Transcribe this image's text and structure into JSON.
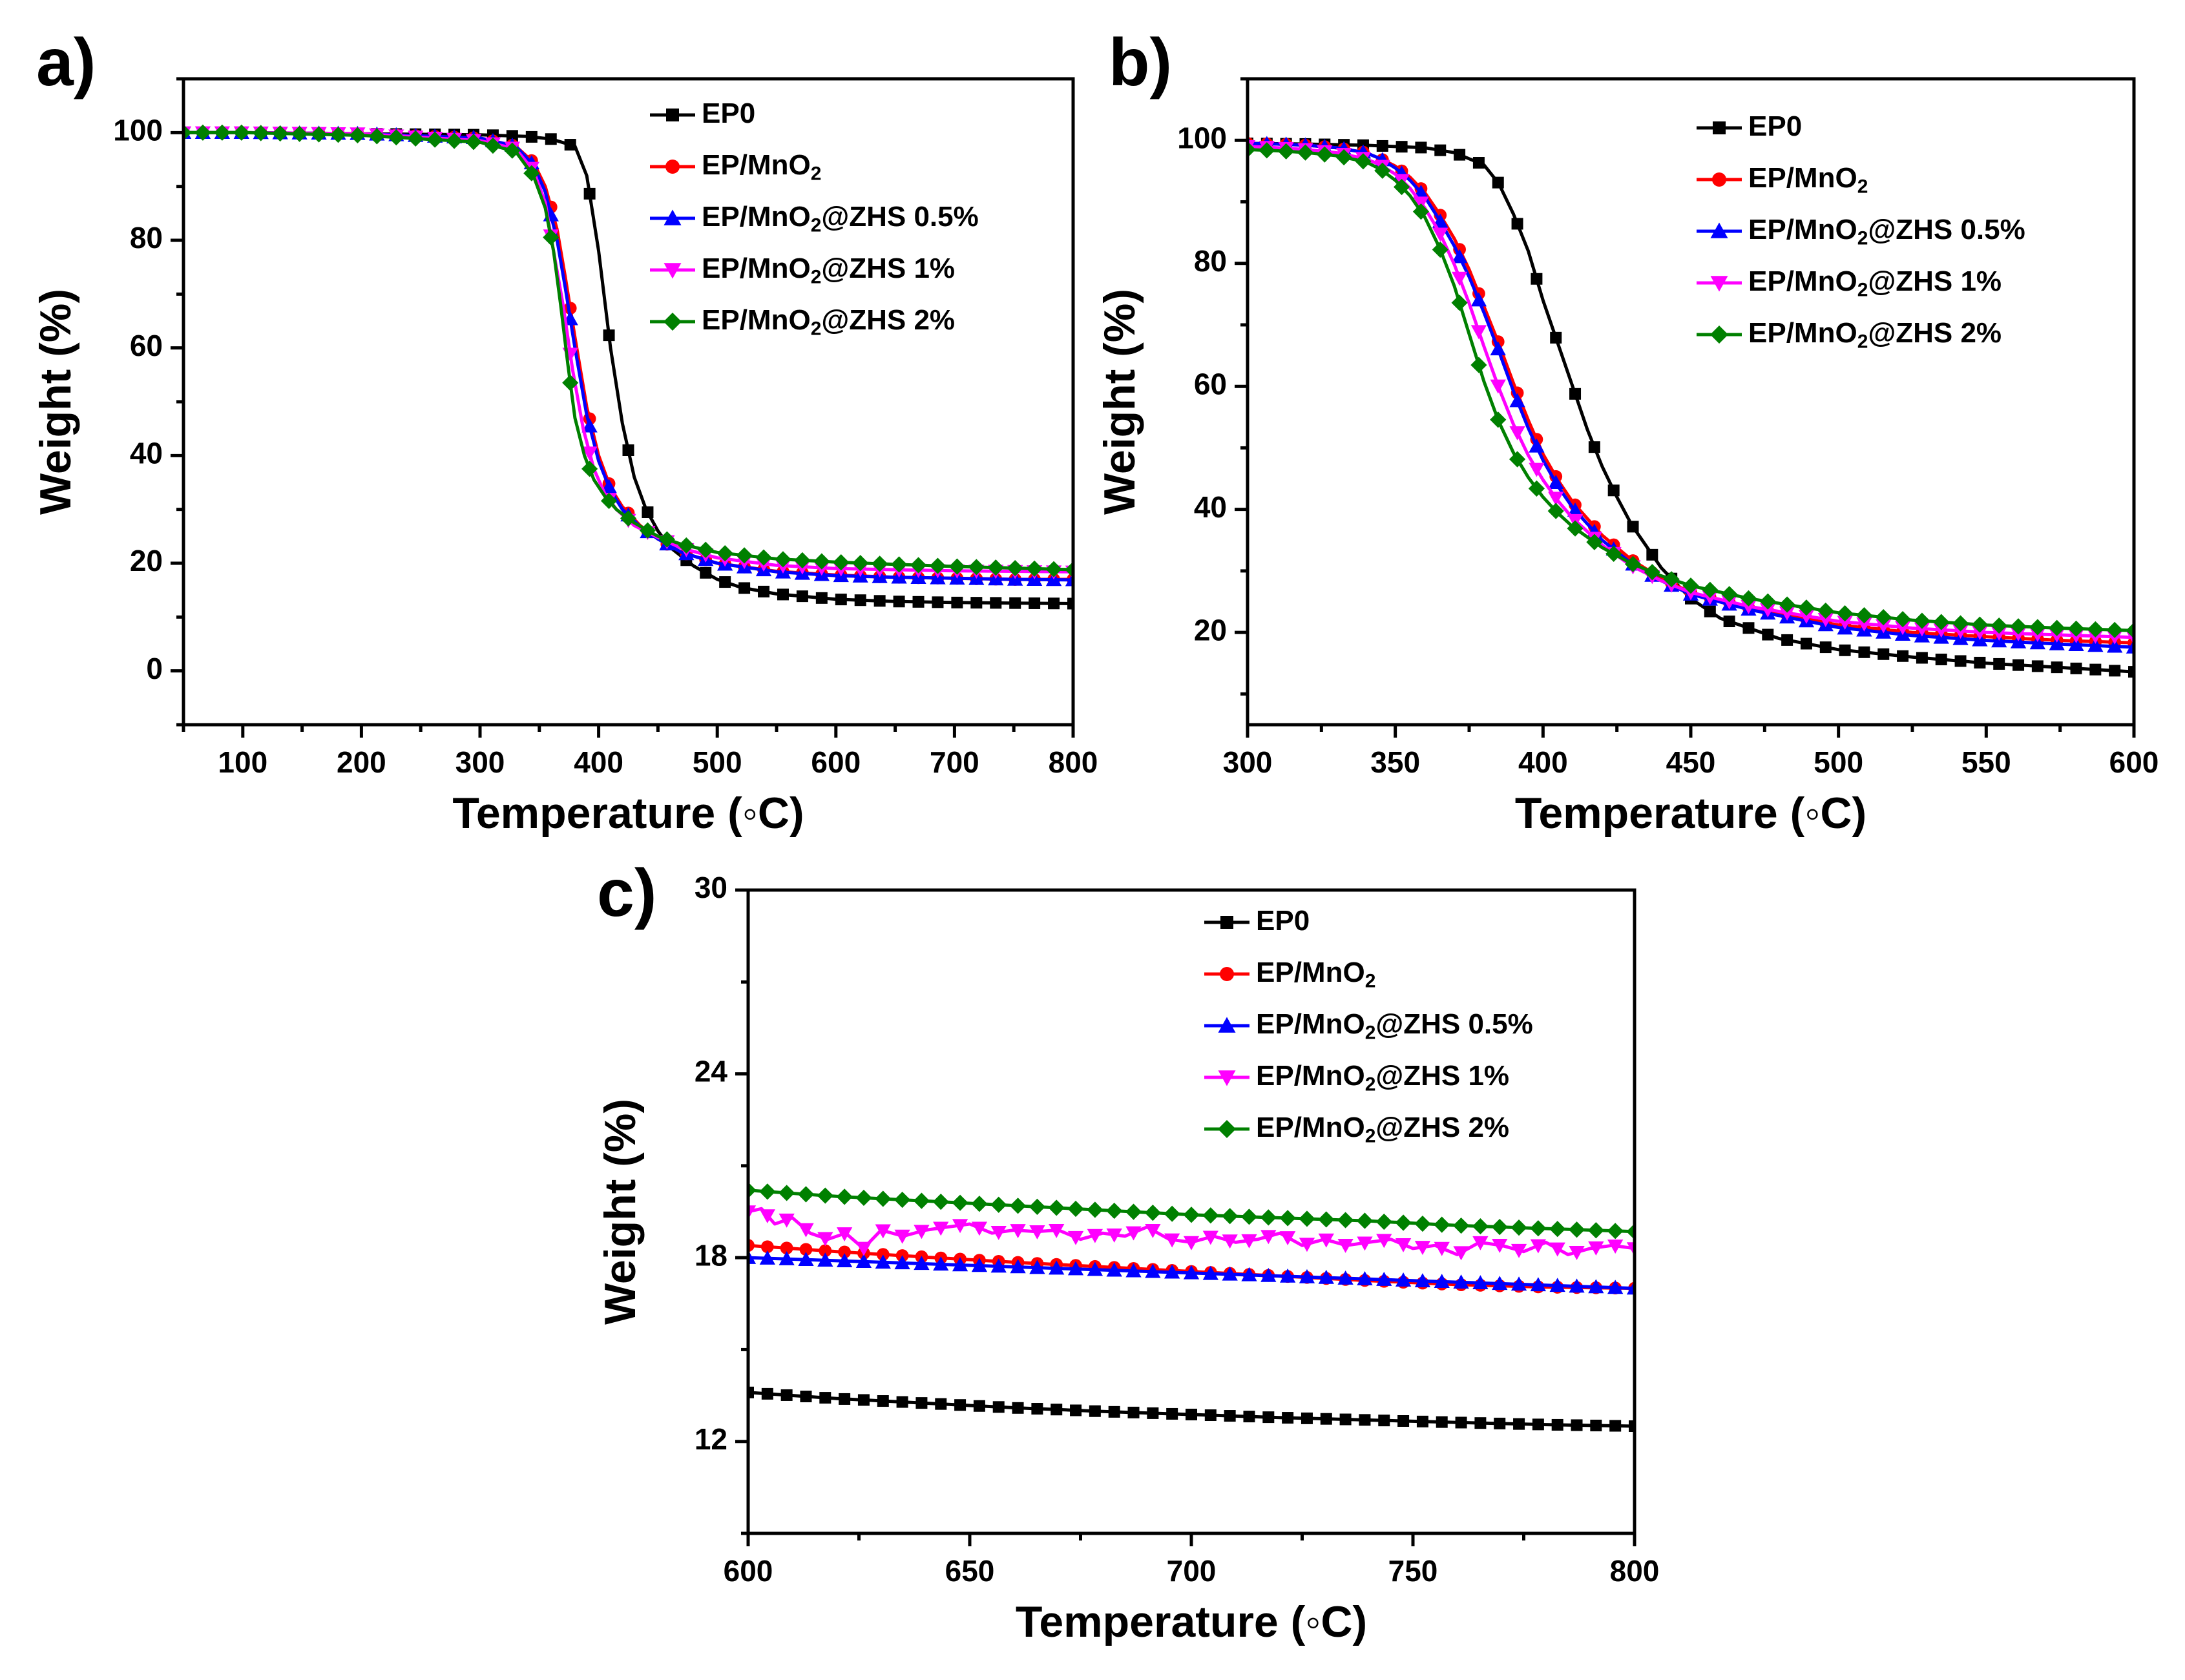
{
  "panels": [
    {
      "tag": "a)",
      "xlabel": "Temperature (◦C)",
      "ylabel": "Weight (%)"
    },
    {
      "tag": "b)",
      "xlabel": "Temperature (◦C)",
      "ylabel": "Weight (%)"
    },
    {
      "tag": "c)",
      "xlabel": "Temperature (◦C)",
      "ylabel": "Weight (%)"
    }
  ],
  "chart_data": [
    {
      "type": "line",
      "panel": "a)",
      "xlabel": "Temperature (◦C)",
      "ylabel": "Weight (%)",
      "xlim": [
        50,
        800
      ],
      "ylim": [
        -10,
        110
      ],
      "xticks": [
        100,
        200,
        300,
        400,
        500,
        600,
        700,
        800
      ],
      "yticks": [
        0,
        20,
        40,
        60,
        80,
        100
      ],
      "grid": false,
      "legend_position": "top-right",
      "series": [
        {
          "name": "EP0",
          "color": "#000000",
          "marker": "square",
          "x": [
            50,
            100,
            200,
            300,
            340,
            360,
            380,
            390,
            400,
            410,
            420,
            430,
            440,
            450,
            460,
            480,
            500,
            520,
            550,
            600,
            650,
            700,
            750,
            800
          ],
          "y": [
            100,
            100,
            99.8,
            99.6,
            99.3,
            98.8,
            97.5,
            92,
            78,
            60,
            46,
            36,
            30,
            26,
            23,
            19.5,
            17,
            15.5,
            14.3,
            13.3,
            12.9,
            12.7,
            12.6,
            12.5
          ]
        },
        {
          "name": "EP/MnO2",
          "color": "#ff0000",
          "marker": "circle",
          "x": [
            50,
            100,
            200,
            300,
            330,
            345,
            355,
            365,
            372,
            380,
            390,
            400,
            410,
            420,
            435,
            450,
            470,
            500,
            550,
            600,
            650,
            700,
            750,
            800
          ],
          "y": [
            100,
            100,
            99.8,
            99,
            97.5,
            94.5,
            90,
            82,
            73,
            62,
            49,
            40,
            34,
            30.5,
            27,
            24.5,
            22,
            20,
            18.5,
            17.8,
            17.4,
            17.2,
            17,
            17
          ]
        },
        {
          "name": "EP/MnO2@ZHS 0.5%",
          "color": "#0000ff",
          "marker": "triangle-up",
          "x": [
            50,
            100,
            200,
            300,
            330,
            345,
            355,
            365,
            372,
            380,
            390,
            400,
            410,
            420,
            435,
            450,
            470,
            500,
            550,
            600,
            650,
            700,
            750,
            800
          ],
          "y": [
            100,
            100,
            99.8,
            99,
            97.5,
            94,
            89,
            80,
            71,
            60,
            47.5,
            39,
            33.5,
            30,
            26.8,
            24.5,
            22,
            20,
            18.4,
            17.7,
            17.4,
            17.2,
            17,
            16.9
          ]
        },
        {
          "name": "EP/MnO2@ZHS 1%",
          "color": "#ff00ff",
          "marker": "triangle-down",
          "x": [
            50,
            100,
            200,
            300,
            330,
            345,
            355,
            362,
            370,
            378,
            387,
            396,
            405,
            415,
            430,
            450,
            470,
            500,
            550,
            600,
            650,
            700,
            750,
            800
          ],
          "y": [
            100,
            100,
            99.8,
            98.5,
            97,
            93,
            87,
            78,
            68,
            56,
            45,
            37.5,
            33,
            30,
            27,
            24.8,
            22.8,
            21,
            19.6,
            19,
            18.8,
            18.6,
            18.5,
            18.4
          ]
        },
        {
          "name": "EP/MnO2@ZHS 2%",
          "color": "#008000",
          "marker": "diamond",
          "x": [
            50,
            100,
            200,
            300,
            330,
            345,
            355,
            362,
            368,
            374,
            380,
            388,
            396,
            405,
            415,
            430,
            450,
            470,
            500,
            550,
            600,
            650,
            700,
            750,
            800
          ],
          "y": [
            100,
            100,
            99.5,
            98.2,
            96.5,
            92,
            86,
            78,
            68,
            57,
            47,
            40,
            35.5,
            32.5,
            30,
            27.5,
            25,
            23.5,
            22,
            20.8,
            20.2,
            19.8,
            19.4,
            19.1,
            18.8
          ]
        }
      ]
    },
    {
      "type": "line",
      "panel": "b)",
      "xlabel": "Temperature (◦C)",
      "ylabel": "Weight (%)",
      "xlim": [
        300,
        600
      ],
      "ylim": [
        5,
        110
      ],
      "xticks": [
        300,
        350,
        400,
        450,
        500,
        550,
        600
      ],
      "yticks": [
        20,
        40,
        60,
        80,
        100
      ],
      "grid": false,
      "legend_position": "top-right",
      "series": [
        {
          "name": "EP0",
          "color": "#000000",
          "marker": "square",
          "x": [
            300,
            320,
            340,
            360,
            370,
            380,
            385,
            390,
            395,
            400,
            405,
            410,
            415,
            420,
            425,
            430,
            440,
            450,
            460,
            480,
            500,
            525,
            550,
            575,
            600
          ],
          "y": [
            99.5,
            99.4,
            99.2,
            98.8,
            98,
            96,
            93,
            88,
            82,
            74,
            67,
            60,
            53,
            47,
            42,
            37.5,
            30.5,
            25.5,
            22.3,
            19,
            17.2,
            16,
            15,
            14.3,
            13.6
          ]
        },
        {
          "name": "EP/MnO2",
          "color": "#ff0000",
          "marker": "circle",
          "x": [
            300,
            310,
            320,
            330,
            340,
            345,
            350,
            355,
            360,
            365,
            370,
            375,
            380,
            385,
            390,
            395,
            400,
            405,
            410,
            420,
            430,
            440,
            450,
            470,
            500,
            525,
            550,
            575,
            600
          ],
          "y": [
            99.5,
            99.4,
            99.2,
            98.8,
            98,
            97,
            95.8,
            94,
            91.5,
            88,
            84,
            79,
            73,
            67,
            60.5,
            54.5,
            49,
            44.8,
            41.2,
            35.8,
            31.8,
            28.8,
            26.5,
            24,
            21.2,
            20,
            19.3,
            18.7,
            18.3
          ]
        },
        {
          "name": "EP/MnO2@ZHS 0.5%",
          "color": "#0000ff",
          "marker": "triangle-up",
          "x": [
            300,
            310,
            320,
            330,
            340,
            345,
            350,
            355,
            360,
            365,
            370,
            375,
            380,
            385,
            390,
            395,
            400,
            405,
            410,
            420,
            430,
            440,
            450,
            470,
            500,
            525,
            550,
            575,
            600
          ],
          "y": [
            99.5,
            99.4,
            99.2,
            98.8,
            98,
            97,
            95.5,
            93.5,
            90.8,
            87,
            82.8,
            77.8,
            72,
            65.8,
            59.2,
            53.2,
            48,
            43.8,
            40.3,
            35,
            31.2,
            28.4,
            26.2,
            23.7,
            20.8,
            19.5,
            18.7,
            18.1,
            17.6
          ]
        },
        {
          "name": "EP/MnO2@ZHS 1%",
          "color": "#ff00ff",
          "marker": "triangle-down",
          "x": [
            300,
            310,
            320,
            330,
            340,
            345,
            350,
            355,
            360,
            365,
            370,
            375,
            380,
            385,
            390,
            395,
            400,
            405,
            410,
            420,
            430,
            440,
            450,
            470,
            500,
            525,
            550,
            575,
            600
          ],
          "y": [
            99,
            98.8,
            98.5,
            98,
            97,
            96,
            94.5,
            92.2,
            89,
            85,
            79.8,
            73.5,
            66.5,
            59.8,
            53.8,
            48.8,
            44.8,
            41.4,
            38.6,
            34.2,
            30.8,
            28.4,
            26.5,
            24.2,
            21.8,
            20.7,
            20,
            19.6,
            19.2
          ]
        },
        {
          "name": "EP/MnO2@ZHS 2%",
          "color": "#008000",
          "marker": "diamond",
          "x": [
            300,
            310,
            320,
            330,
            340,
            345,
            350,
            355,
            360,
            365,
            370,
            375,
            380,
            385,
            390,
            395,
            400,
            405,
            410,
            420,
            430,
            440,
            450,
            470,
            500,
            525,
            550,
            575,
            600
          ],
          "y": [
            98.5,
            98.3,
            98,
            97.5,
            96.5,
            95.3,
            93.5,
            91,
            87.5,
            82.5,
            76.3,
            68.5,
            60.8,
            54.3,
            49.2,
            45.2,
            42,
            39.4,
            37.2,
            33.8,
            31.2,
            29.2,
            27.6,
            25.5,
            23.2,
            22,
            21.2,
            20.7,
            20.3
          ]
        }
      ]
    },
    {
      "type": "line",
      "panel": "c)",
      "xlabel": "Temperature (◦C)",
      "ylabel": "Weight (%)",
      "xlim": [
        600,
        800
      ],
      "ylim": [
        9,
        30
      ],
      "xticks": [
        600,
        650,
        700,
        750,
        800
      ],
      "yticks": [
        12,
        18,
        24,
        30
      ],
      "grid": false,
      "legend_position": "top-right",
      "series": [
        {
          "name": "EP0",
          "color": "#000000",
          "marker": "square",
          "x": [
            600,
            620,
            640,
            660,
            680,
            700,
            720,
            740,
            760,
            780,
            800
          ],
          "y": [
            13.6,
            13.4,
            13.25,
            13.1,
            12.98,
            12.88,
            12.78,
            12.7,
            12.62,
            12.55,
            12.5
          ]
        },
        {
          "name": "EP/MnO2",
          "color": "#ff0000",
          "marker": "circle",
          "x": [
            600,
            620,
            640,
            660,
            680,
            700,
            720,
            740,
            760,
            780,
            800
          ],
          "y": [
            18.4,
            18.2,
            18.02,
            17.85,
            17.7,
            17.55,
            17.4,
            17.25,
            17.12,
            17.04,
            17.0
          ]
        },
        {
          "name": "EP/MnO2@ZHS 0.5%",
          "color": "#0000ff",
          "marker": "triangle-up",
          "x": [
            600,
            620,
            640,
            660,
            680,
            700,
            720,
            740,
            760,
            780,
            800
          ],
          "y": [
            18.0,
            17.9,
            17.8,
            17.7,
            17.6,
            17.5,
            17.4,
            17.3,
            17.2,
            17.1,
            17.0
          ]
        },
        {
          "name": "EP/MnO2@ZHS 1%",
          "color": "#ff00ff",
          "marker": "triangle-down",
          "x": [
            600,
            603,
            606,
            610,
            614,
            618,
            622,
            626,
            630,
            635,
            640,
            645,
            650,
            655,
            660,
            665,
            670,
            675,
            680,
            685,
            690,
            695,
            700,
            705,
            710,
            715,
            720,
            725,
            730,
            735,
            740,
            745,
            750,
            755,
            760,
            765,
            770,
            775,
            780,
            785,
            790,
            795,
            800
          ],
          "y": [
            19.5,
            19.6,
            19.1,
            19.3,
            18.8,
            18.6,
            18.8,
            18.3,
            18.9,
            18.7,
            18.9,
            19.0,
            19.1,
            18.8,
            18.9,
            18.85,
            18.9,
            18.6,
            18.8,
            18.7,
            19.0,
            18.6,
            18.5,
            18.7,
            18.5,
            18.6,
            18.8,
            18.4,
            18.6,
            18.4,
            18.5,
            18.6,
            18.3,
            18.4,
            18.1,
            18.5,
            18.4,
            18.2,
            18.5,
            18.1,
            18.3,
            18.4,
            18.3
          ]
        },
        {
          "name": "EP/MnO2@ZHS 2%",
          "color": "#008000",
          "marker": "diamond",
          "x": [
            600,
            620,
            640,
            660,
            680,
            700,
            720,
            740,
            760,
            780,
            800
          ],
          "y": [
            20.2,
            20.0,
            19.85,
            19.7,
            19.55,
            19.4,
            19.3,
            19.2,
            19.05,
            18.95,
            18.85
          ]
        }
      ]
    }
  ]
}
